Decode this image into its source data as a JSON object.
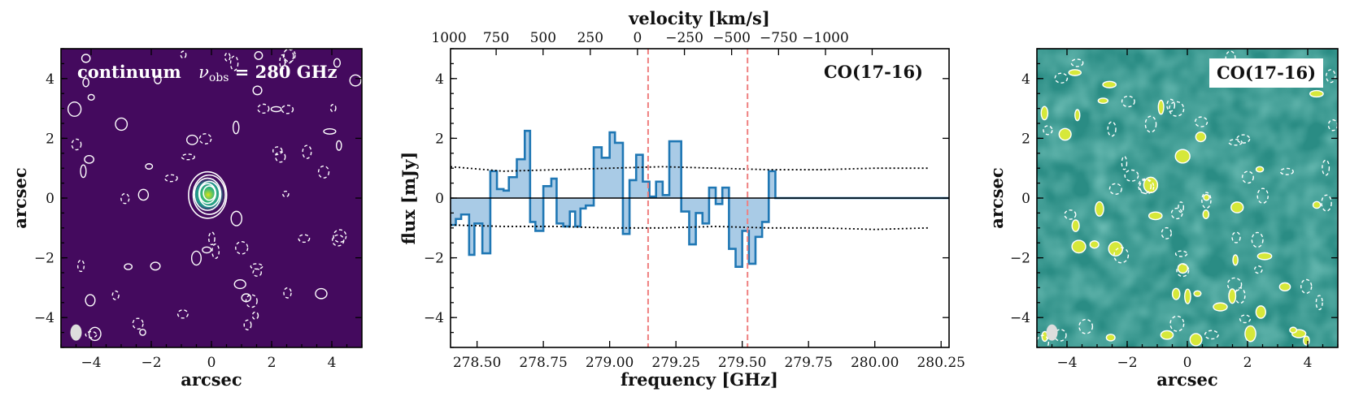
{
  "chart_data": [
    {
      "type": "heatmap",
      "panel": "left",
      "colormap": "viridis (dark purple background)",
      "title": "continuum",
      "title_freq_sym": "ν",
      "title_freq_sub": "obs",
      "title_freq_value": " = 280 GHz",
      "xlabel": "arcsec",
      "ylabel": "arcsec",
      "xlim": [
        -5,
        5
      ],
      "ylim": [
        -5,
        5
      ],
      "xticks": [
        -4,
        -2,
        0,
        2,
        4
      ],
      "yticks": [
        -4,
        -2,
        0,
        2,
        4
      ],
      "xtick_labels": [
        "−4",
        "−2",
        "0",
        "2",
        "4"
      ],
      "ytick_labels": [
        "−4",
        "−2",
        "0",
        "2",
        "4"
      ],
      "source": {
        "x": -0.1,
        "y": 0.1,
        "note": "compact continuum source with concentric contours"
      }
    },
    {
      "type": "line",
      "panel": "middle",
      "drawstyle": "steps",
      "label": "CO(17-16)",
      "xlabel": "frequency [GHz]",
      "ylabel": "flux [mJy]",
      "top_xlabel": "velocity [km/s]",
      "xlim": [
        278.4,
        280.28
      ],
      "ylim": [
        -5,
        5
      ],
      "xticks": [
        278.5,
        278.75,
        279.0,
        279.25,
        279.5,
        279.75,
        280.0,
        280.25
      ],
      "xtick_labels": [
        "278.50",
        "278.75",
        "279.00",
        "279.25",
        "279.50",
        "279.75",
        "280.00",
        "280.25"
      ],
      "yticks": [
        -4,
        -2,
        0,
        2,
        4
      ],
      "ytick_labels": [
        "−4",
        "−2",
        "0",
        "2",
        "4"
      ],
      "top_ticks_freq": [
        278.394,
        278.572,
        278.749,
        278.927,
        279.105,
        279.282,
        279.46,
        279.637,
        279.814,
        279.99
      ],
      "top_tick_labels": [
        "1000",
        "750",
        "500",
        "250",
        "0",
        "−250",
        "−500",
        "−750",
        "−1000"
      ],
      "top_tick_label_freq": [
        278.394,
        278.572,
        278.749,
        278.927,
        279.105,
        279.282,
        279.46,
        279.637,
        279.814
      ],
      "vlines": [
        279.145,
        279.52
      ],
      "series": [
        {
          "name": "flux",
          "x": [
            278.4,
            278.42,
            278.44,
            278.47,
            278.49,
            278.52,
            278.55,
            278.575,
            278.6,
            278.62,
            278.65,
            278.68,
            278.7,
            278.72,
            278.75,
            278.78,
            278.8,
            278.825,
            278.85,
            278.87,
            278.89,
            278.91,
            278.94,
            278.97,
            279.0,
            279.02,
            279.05,
            279.075,
            279.1,
            279.125,
            279.15,
            279.175,
            279.2,
            279.225,
            279.25,
            279.27,
            279.3,
            279.325,
            279.35,
            279.375,
            279.4,
            279.425,
            279.45,
            279.475,
            279.5,
            279.525,
            279.55,
            279.575,
            279.6,
            279.625,
            279.65,
            279.675,
            279.7,
            279.725,
            279.75,
            279.775,
            279.8,
            279.825,
            279.85,
            279.875,
            279.9,
            279.925,
            279.95,
            279.975,
            280.0,
            280.025,
            280.05,
            280.075,
            280.1,
            280.125,
            280.15,
            280.175,
            280.2
          ],
          "y": [
            -0.9,
            -0.7,
            -0.55,
            -1.9,
            -0.85,
            -1.85,
            0.9,
            0.3,
            0.25,
            0.7,
            1.3,
            2.25,
            -0.8,
            -1.1,
            0.4,
            0.65,
            -0.85,
            -0.95,
            -0.45,
            -0.95,
            -0.35,
            -0.25,
            1.7,
            1.35,
            2.2,
            1.85,
            -1.2,
            0.6,
            1.45,
            0.55,
            0.05,
            0.55,
            0.1,
            1.9,
            1.9,
            -0.45,
            -1.55,
            -0.5,
            -0.85,
            0.35,
            -0.2,
            0.35,
            -1.7,
            -2.3,
            -1.1,
            -2.2,
            -1.3,
            -0.8,
            0.9,
            0.0,
            0.0,
            0.0,
            0.0,
            0.0,
            0.0,
            0.0,
            0.0,
            0.0,
            0.0,
            0.0,
            0.0,
            0.0,
            0.0,
            0.0,
            0.0,
            0.0,
            0.0,
            0.0,
            0.0,
            0.0,
            0.0,
            0.0,
            0.0
          ],
          "color": "#1f77b4"
        },
        {
          "name": "rms_upper",
          "x": [
            278.4,
            278.6,
            278.8,
            279.0,
            279.2,
            279.4,
            279.6,
            279.8,
            280.0,
            280.2
          ],
          "y": [
            1.05,
            0.9,
            0.95,
            1.0,
            1.05,
            1.0,
            0.95,
            0.95,
            1.0,
            1.0
          ]
        },
        {
          "name": "rms_lower",
          "x": [
            278.4,
            278.6,
            278.8,
            279.0,
            279.2,
            279.4,
            279.6,
            279.8,
            280.0,
            280.2
          ],
          "y": [
            -0.9,
            -0.95,
            -0.95,
            -1.0,
            -1.0,
            -0.95,
            -1.0,
            -1.0,
            -1.05,
            -1.0
          ]
        }
      ]
    },
    {
      "type": "heatmap",
      "panel": "right",
      "colormap": "viridis (green noise map)",
      "label": "CO(17-16)",
      "xlabel": "arcsec",
      "ylabel": "arcsec",
      "xlim": [
        -5,
        5
      ],
      "ylim": [
        -5,
        5
      ],
      "xticks": [
        -4,
        -2,
        0,
        2,
        4
      ],
      "yticks": [
        -4,
        -2,
        0,
        2,
        4
      ],
      "xtick_labels": [
        "−4",
        "−2",
        "0",
        "2",
        "4"
      ],
      "ytick_labels": [
        "−4",
        "−2",
        "0",
        "2",
        "4"
      ]
    }
  ],
  "colors": {
    "continuum_bg": "#440a5e",
    "spectrum_line": "#1f77b4",
    "spectrum_fill": "#a9cbe6",
    "vline": "#ef7f7f",
    "noise_dark": "#2f6f8a",
    "noise_mid": "#2fa07e",
    "noise_light": "#86d04a"
  }
}
